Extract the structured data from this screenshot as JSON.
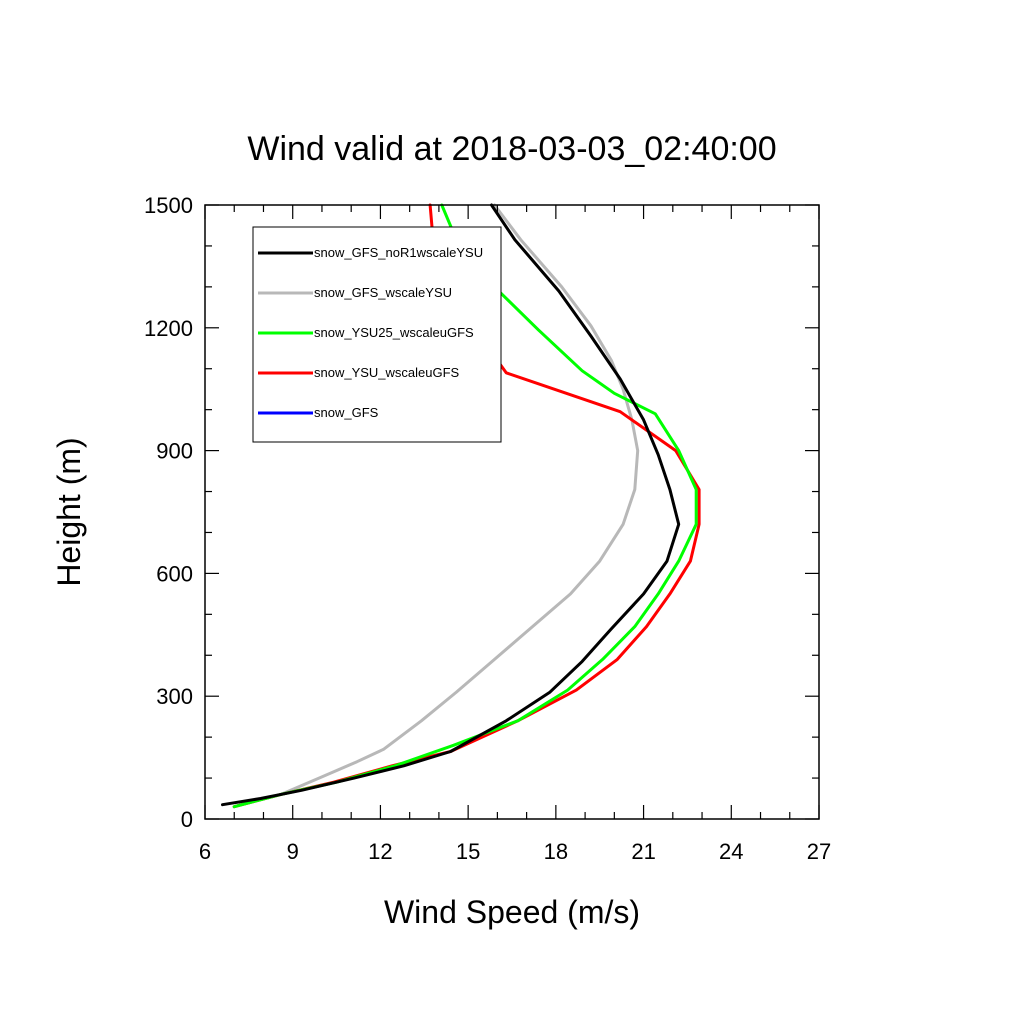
{
  "chart_data": {
    "type": "line",
    "title": "Wind valid at 2018-03-03_02:40:00",
    "xlabel": "Wind Speed (m/s)",
    "ylabel": "Height (m)",
    "xlim": [
      6,
      27
    ],
    "ylim": [
      0,
      1500
    ],
    "xticks": [
      6,
      9,
      12,
      15,
      18,
      21,
      24,
      27
    ],
    "yticks": [
      0,
      300,
      600,
      900,
      1200,
      1500
    ],
    "grid": false,
    "legend": "top-left",
    "series": [
      {
        "name": "snow_GFS_noR1wscaleYSU",
        "color": "#000000",
        "x": [
          6.6,
          7.9,
          9.3,
          11.1,
          12.8,
          14.4,
          16.3,
          17.8,
          18.9,
          19.9,
          21.0,
          21.8,
          22.2,
          21.9,
          21.5,
          21.0,
          20.2,
          19.2,
          18.1,
          16.6,
          15.8
        ],
        "y": [
          35,
          50,
          70,
          100,
          130,
          165,
          240,
          310,
          385,
          465,
          550,
          630,
          720,
          805,
          890,
          975,
          1075,
          1180,
          1290,
          1415,
          1500
        ]
      },
      {
        "name": "snow_GFS_wscaleYSU",
        "color": "#b8b8b8",
        "x": [
          7.0,
          8.6,
          9.9,
          11.2,
          12.1,
          13.4,
          14.6,
          15.9,
          17.2,
          18.5,
          19.5,
          20.3,
          20.7,
          20.8,
          20.6,
          20.3,
          19.9,
          19.2,
          18.2,
          16.8,
          15.9
        ],
        "y": [
          30,
          60,
          100,
          140,
          170,
          240,
          310,
          390,
          470,
          550,
          630,
          720,
          805,
          900,
          975,
          1050,
          1120,
          1205,
          1300,
          1415,
          1500
        ]
      },
      {
        "name": "snow_YSU25_wscaleuGFS",
        "color": "#00ff00",
        "x": [
          7.0,
          8.6,
          10.5,
          12.5,
          14.5,
          16.7,
          18.4,
          19.6,
          20.7,
          21.5,
          22.2,
          22.8,
          22.8,
          22.2,
          21.4,
          20.0,
          18.9,
          17.4,
          15.9,
          14.6,
          14.1
        ],
        "y": [
          30,
          60,
          90,
          130,
          180,
          240,
          315,
          390,
          470,
          550,
          630,
          720,
          805,
          900,
          990,
          1040,
          1095,
          1195,
          1300,
          1415,
          1500
        ]
      },
      {
        "name": "snow_YSU_wscaleuGFS",
        "color": "#ff0000",
        "x": [
          7.0,
          8.6,
          10.4,
          12.4,
          14.4,
          16.7,
          18.7,
          20.1,
          21.1,
          21.9,
          22.6,
          22.9,
          22.9,
          22.1,
          20.2,
          16.3,
          15.1,
          14.0,
          13.8,
          13.7
        ],
        "y": [
          30,
          60,
          90,
          130,
          165,
          240,
          315,
          390,
          470,
          550,
          630,
          720,
          805,
          900,
          995,
          1090,
          1210,
          1300,
          1415,
          1500
        ]
      },
      {
        "name": "snow_GFS",
        "color": "#0000ff",
        "x": [
          7.0,
          8.6,
          9.9,
          11.2,
          12.1,
          13.4,
          14.6,
          15.9,
          17.2,
          18.5,
          19.5,
          20.3,
          20.7,
          20.8,
          20.6,
          20.3,
          19.9,
          19.2,
          18.2,
          16.8,
          15.9
        ],
        "y": [
          30,
          60,
          100,
          140,
          170,
          240,
          310,
          390,
          470,
          550,
          630,
          720,
          805,
          900,
          975,
          1050,
          1120,
          1205,
          1300,
          1415,
          1500
        ]
      }
    ]
  }
}
